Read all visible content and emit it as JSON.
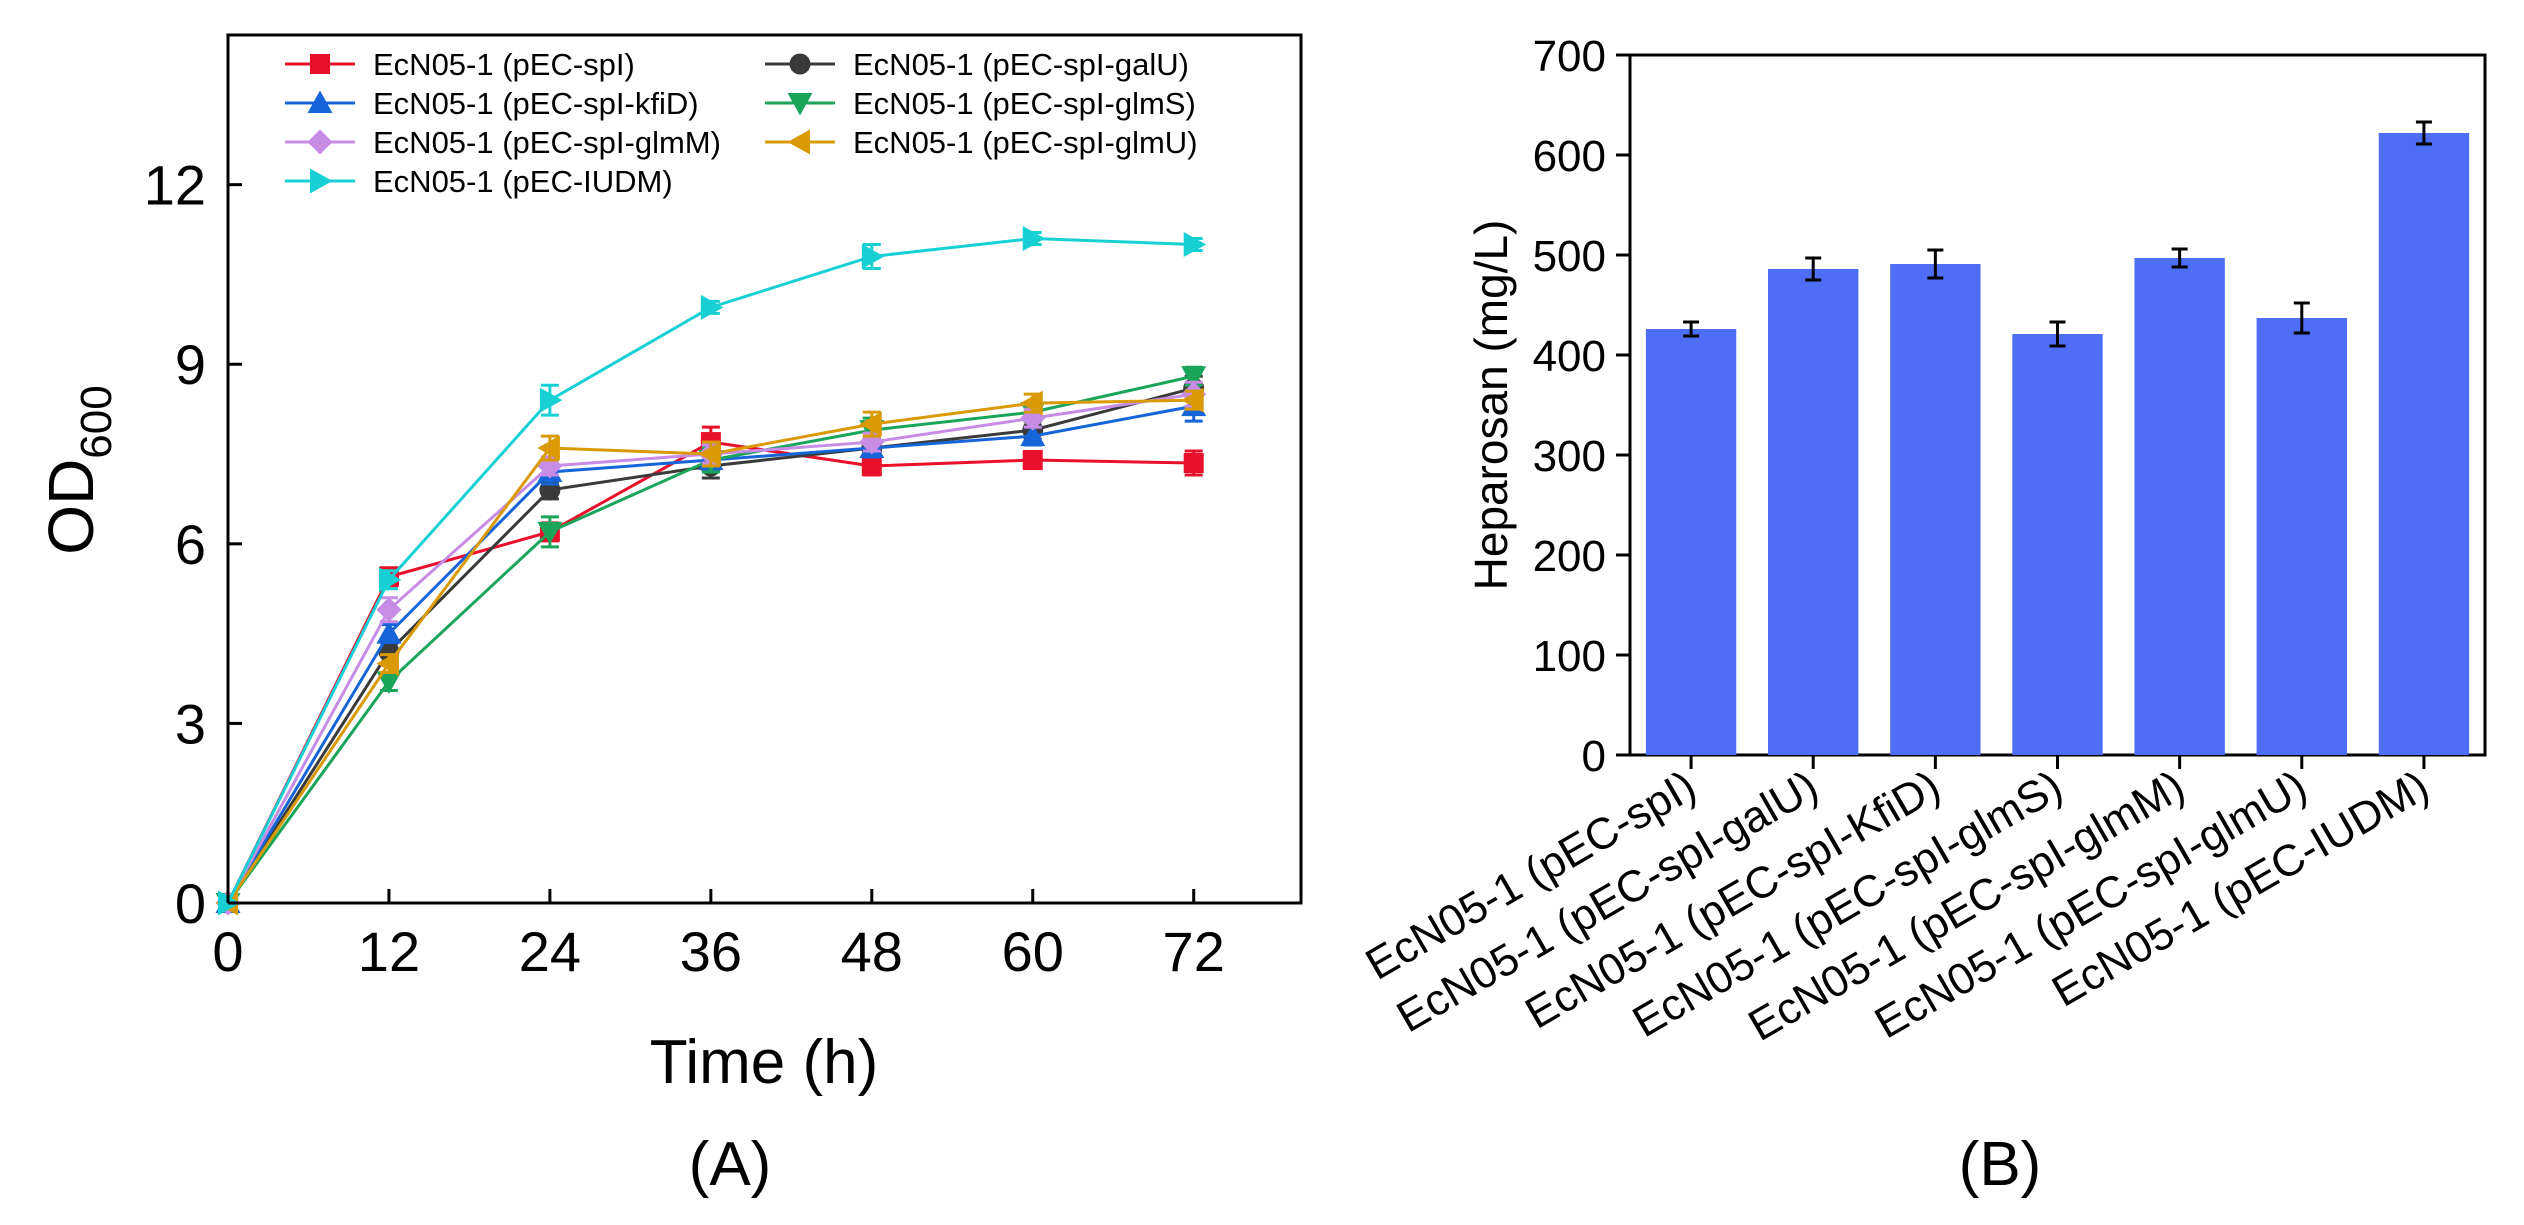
{
  "chart_data": [
    {
      "type": "line",
      "panel_label": "(A)",
      "title": "",
      "xlabel": "Time (h)",
      "ylabel_main": "OD",
      "ylabel_sub": "600",
      "xlim": [
        0,
        80
      ],
      "ylim": [
        0,
        14.5
      ],
      "x_ticks": [
        0,
        12,
        24,
        36,
        48,
        60,
        72
      ],
      "y_ticks": [
        0,
        3,
        6,
        9,
        12
      ],
      "x": [
        0,
        12,
        24,
        36,
        48,
        60,
        72
      ],
      "legend_position": "top-left",
      "series": [
        {
          "name": "EcN05-1 (pEC-spI)",
          "color": "#e8102a",
          "marker": "square",
          "values": [
            0,
            5.45,
            6.2,
            7.7,
            7.3,
            7.4,
            7.35
          ],
          "errors": [
            0,
            0.15,
            0.15,
            0.25,
            0.15,
            0.1,
            0.2
          ]
        },
        {
          "name": "EcN05-1 (pEC-spI-galU)",
          "color": "#3a3a3a",
          "marker": "circle",
          "values": [
            0,
            4.2,
            6.9,
            7.3,
            7.6,
            7.9,
            8.6
          ],
          "errors": [
            0,
            0.2,
            0.15,
            0.2,
            0.15,
            0.15,
            0.2
          ]
        },
        {
          "name": "EcN05-1 (pEC-spI-kfiD)",
          "color": "#1565d8",
          "marker": "triangle-up",
          "values": [
            0,
            4.5,
            7.2,
            7.4,
            7.6,
            7.8,
            8.3
          ],
          "errors": [
            0,
            0.15,
            0.2,
            0.15,
            0.15,
            0.15,
            0.25
          ]
        },
        {
          "name": "EcN05-1 (pEC-spI-glmS)",
          "color": "#1aa55a",
          "marker": "triangle-down",
          "values": [
            0,
            3.7,
            6.2,
            7.4,
            7.9,
            8.2,
            8.8
          ],
          "errors": [
            0,
            0.15,
            0.25,
            0.2,
            0.2,
            0.15,
            0.15
          ]
        },
        {
          "name": "EcN05-1 (pEC-spI-glmM)",
          "color": "#c78ce6",
          "marker": "diamond",
          "values": [
            0,
            4.9,
            7.3,
            7.5,
            7.7,
            8.1,
            8.5
          ],
          "errors": [
            0,
            0.2,
            0.15,
            0.15,
            0.15,
            0.15,
            0.2
          ]
        },
        {
          "name": "EcN05-1 (pEC-spI-glmU)",
          "color": "#d99a06",
          "marker": "triangle-left",
          "values": [
            0,
            4.0,
            7.6,
            7.5,
            8.0,
            8.35,
            8.4
          ],
          "errors": [
            0,
            0.15,
            0.2,
            0.2,
            0.2,
            0.15,
            0.15
          ]
        },
        {
          "name": "EcN05-1 (pEC-IUDM)",
          "color": "#18d0d4",
          "marker": "triangle-right",
          "values": [
            0,
            5.4,
            8.4,
            9.95,
            10.8,
            11.1,
            11.0
          ],
          "errors": [
            0,
            0.15,
            0.25,
            0.1,
            0.2,
            0.1,
            0.1
          ]
        }
      ]
    },
    {
      "type": "bar",
      "panel_label": "(B)",
      "title": "",
      "xlabel": "",
      "ylabel": "Heparosan (mg/L)",
      "ylim": [
        0,
        700
      ],
      "y_ticks": [
        0,
        100,
        200,
        300,
        400,
        500,
        600,
        700
      ],
      "bar_color": "#4e6ef5",
      "categories": [
        "EcN05-1 (pEC-spI)",
        "EcN05-1 (pEC-spI-galU)",
        "EcN05-1 (pEC-spI-KfiD)",
        "EcN05-1 (pEC-spI-glmS)",
        "EcN05-1 (pEC-spI-glmM)",
        "EcN05-1 (pEC-spI-glmU)",
        "EcN05-1 (pEC-IUDM)"
      ],
      "values": [
        426,
        486,
        491,
        421,
        497,
        437,
        622
      ],
      "errors": [
        7,
        11,
        14,
        12,
        9,
        15,
        11
      ]
    }
  ]
}
